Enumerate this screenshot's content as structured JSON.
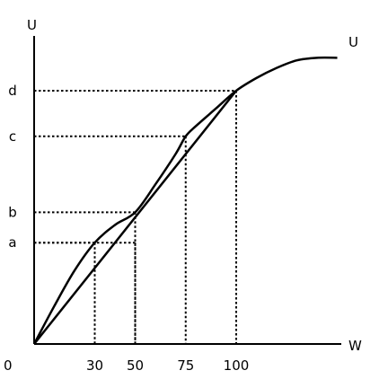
{
  "chart_data": {
    "type": "line",
    "title": "",
    "xlabel": "W",
    "ylabel": "U",
    "origin_label": "0",
    "curve_label": "U",
    "xlim": [
      0,
      150
    ],
    "ylim": [
      0,
      1.2
    ],
    "x_ticks": [
      {
        "value": 30,
        "label": "30"
      },
      {
        "value": 50,
        "label": "50"
      },
      {
        "value": 75,
        "label": "75"
      },
      {
        "value": 100,
        "label": "100"
      }
    ],
    "y_ticks": [
      {
        "value": 0.4,
        "label": "a"
      },
      {
        "value": 0.52,
        "label": "b"
      },
      {
        "value": 0.82,
        "label": "c"
      },
      {
        "value": 1.0,
        "label": "d"
      }
    ],
    "series": [
      {
        "x": [
          0,
          10,
          20,
          30,
          40,
          50,
          60,
          70,
          75,
          80,
          90,
          100,
          110,
          120,
          130,
          140,
          150
        ],
        "y": [
          0,
          0.15,
          0.29,
          0.4,
          0.47,
          0.52,
          0.63,
          0.75,
          0.82,
          0.86,
          0.93,
          1.0,
          1.05,
          1.09,
          1.12,
          1.13,
          1.13
        ]
      },
      {
        "x": [
          0,
          100
        ],
        "y": [
          0,
          1.0
        ]
      }
    ],
    "guides": [
      {
        "x": 30,
        "y": 0.4
      },
      {
        "x": 50,
        "y": 0.4
      },
      {
        "x": 50,
        "y": 0.52
      },
      {
        "x": 75,
        "y": 0.82
      },
      {
        "x": 100,
        "y": 1.0
      }
    ],
    "grid": false,
    "colors": {
      "ink": "#000000",
      "background": "#ffffff"
    }
  }
}
